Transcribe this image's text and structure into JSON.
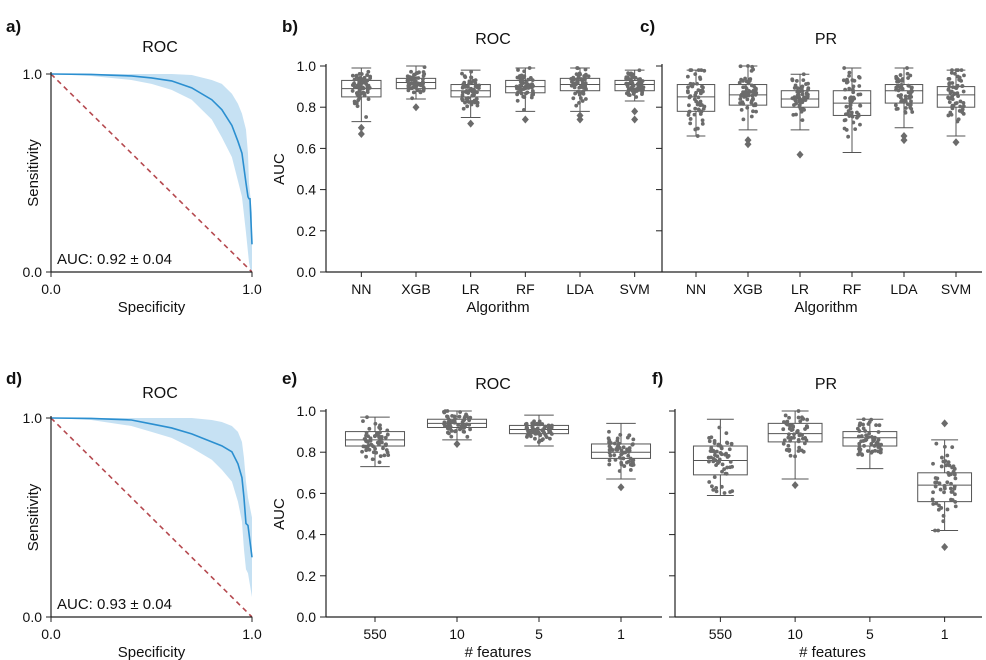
{
  "chart_data": [
    {
      "panel_label": "a)",
      "type": "line",
      "title": "ROC",
      "xlabel": "Specificity",
      "ylabel": "Sensitivity",
      "xlim": [
        0,
        1
      ],
      "ylim": [
        0,
        1
      ],
      "x_ticks": [
        "0.0",
        "1.0"
      ],
      "y_ticks": [
        "0.0",
        "1.0"
      ],
      "annotation": "AUC: 0.92 ± 0.04",
      "colors": {
        "curve": "#2b8fd0",
        "band": "#bcdcf1",
        "chance": "#b5494f"
      },
      "curve": {
        "x": [
          0,
          0.2,
          0.4,
          0.5,
          0.6,
          0.7,
          0.8,
          0.85,
          0.9,
          0.93,
          0.95,
          0.97,
          0.98,
          0.985,
          0.99,
          1.0
        ],
        "y": [
          1,
          0.998,
          0.99,
          0.98,
          0.965,
          0.93,
          0.87,
          0.82,
          0.74,
          0.66,
          0.6,
          0.45,
          0.38,
          0.37,
          0.37,
          0.14
        ]
      },
      "band_upper": [
        1,
        1,
        1,
        1,
        1,
        0.995,
        0.97,
        0.95,
        0.9,
        0.85,
        0.8,
        0.72,
        0.6,
        0.45,
        0.4,
        0.3
      ],
      "band_lower": [
        1,
        0.99,
        0.97,
        0.95,
        0.92,
        0.87,
        0.77,
        0.68,
        0.58,
        0.46,
        0.38,
        0.2,
        0.1,
        0.05,
        0.02,
        0
      ],
      "chance": true
    },
    {
      "panel_label": "b)",
      "type": "box",
      "title": "ROC",
      "xlabel": "Algorithm",
      "ylabel": "AUC",
      "ylim": [
        0,
        1
      ],
      "y_ticks": [
        "0.0",
        "0.2",
        "0.4",
        "0.6",
        "0.8",
        "1.0"
      ],
      "categories": [
        "NN",
        "XGB",
        "LR",
        "RF",
        "LDA",
        "SVM"
      ],
      "boxes": [
        {
          "min": 0.73,
          "q1": 0.85,
          "median": 0.89,
          "q3": 0.93,
          "max": 0.99,
          "outliers": [
            0.67,
            0.7
          ]
        },
        {
          "min": 0.84,
          "q1": 0.89,
          "median": 0.92,
          "q3": 0.94,
          "max": 1.0,
          "outliers": [
            0.8
          ]
        },
        {
          "min": 0.75,
          "q1": 0.85,
          "median": 0.88,
          "q3": 0.91,
          "max": 0.98,
          "outliers": [
            0.72
          ]
        },
        {
          "min": 0.78,
          "q1": 0.87,
          "median": 0.9,
          "q3": 0.93,
          "max": 0.99,
          "outliers": [
            0.74
          ]
        },
        {
          "min": 0.78,
          "q1": 0.88,
          "median": 0.91,
          "q3": 0.94,
          "max": 0.99,
          "outliers": [
            0.74,
            0.76
          ]
        },
        {
          "min": 0.83,
          "q1": 0.88,
          "median": 0.91,
          "q3": 0.93,
          "max": 0.98,
          "outliers": [
            0.74,
            0.78
          ]
        }
      ]
    },
    {
      "panel_label": "c)",
      "type": "box",
      "title": "PR",
      "xlabel": "Algorithm",
      "ylabel": "",
      "ylim": [
        0,
        1
      ],
      "y_ticks": [],
      "categories": [
        "NN",
        "XGB",
        "LR",
        "RF",
        "LDA",
        "SVM"
      ],
      "boxes": [
        {
          "min": 0.66,
          "q1": 0.78,
          "median": 0.85,
          "q3": 0.91,
          "max": 0.98,
          "outliers": []
        },
        {
          "min": 0.69,
          "q1": 0.81,
          "median": 0.86,
          "q3": 0.91,
          "max": 1.0,
          "outliers": [
            0.62,
            0.64
          ]
        },
        {
          "min": 0.69,
          "q1": 0.8,
          "median": 0.84,
          "q3": 0.88,
          "max": 0.96,
          "outliers": [
            0.57
          ]
        },
        {
          "min": 0.58,
          "q1": 0.76,
          "median": 0.82,
          "q3": 0.88,
          "max": 0.99,
          "outliers": []
        },
        {
          "min": 0.7,
          "q1": 0.82,
          "median": 0.88,
          "q3": 0.91,
          "max": 0.99,
          "outliers": [
            0.64,
            0.66
          ]
        },
        {
          "min": 0.66,
          "q1": 0.8,
          "median": 0.86,
          "q3": 0.9,
          "max": 0.98,
          "outliers": [
            0.63
          ]
        }
      ]
    },
    {
      "panel_label": "d)",
      "type": "line",
      "title": "ROC",
      "xlabel": "Specificity",
      "ylabel": "Sensitivity",
      "xlim": [
        0,
        1
      ],
      "ylim": [
        0,
        1
      ],
      "x_ticks": [
        "0.0",
        "1.0"
      ],
      "y_ticks": [
        "0.0",
        "1.0"
      ],
      "annotation": "AUC: 0.93 ± 0.04",
      "colors": {
        "curve": "#2b8fd0",
        "band": "#bcdcf1",
        "chance": "#b5494f"
      },
      "curve": {
        "x": [
          0,
          0.2,
          0.4,
          0.5,
          0.6,
          0.7,
          0.8,
          0.85,
          0.9,
          0.93,
          0.95,
          0.96,
          0.97,
          0.98,
          1.0
        ],
        "y": [
          1,
          0.998,
          0.99,
          0.97,
          0.95,
          0.92,
          0.88,
          0.86,
          0.83,
          0.77,
          0.7,
          0.6,
          0.47,
          0.46,
          0.3
        ]
      },
      "band_upper": [
        1,
        1,
        1,
        1,
        1,
        1,
        0.99,
        0.98,
        0.96,
        0.93,
        0.88,
        0.8,
        0.68,
        0.6,
        0.5
      ],
      "band_lower": [
        1,
        0.99,
        0.96,
        0.93,
        0.9,
        0.85,
        0.79,
        0.74,
        0.68,
        0.58,
        0.48,
        0.34,
        0.24,
        0.22,
        0.1
      ],
      "chance": true
    },
    {
      "panel_label": "e)",
      "type": "box",
      "title": "ROC",
      "xlabel": "# features",
      "ylabel": "AUC",
      "ylim": [
        0,
        1
      ],
      "y_ticks": [
        "0.0",
        "0.2",
        "0.4",
        "0.6",
        "0.8",
        "1.0"
      ],
      "categories": [
        "550",
        "10",
        "5",
        "1"
      ],
      "boxes": [
        {
          "min": 0.73,
          "q1": 0.83,
          "median": 0.86,
          "q3": 0.9,
          "max": 0.97,
          "outliers": []
        },
        {
          "min": 0.86,
          "q1": 0.92,
          "median": 0.94,
          "q3": 0.96,
          "max": 1.0,
          "outliers": [
            0.84
          ]
        },
        {
          "min": 0.83,
          "q1": 0.89,
          "median": 0.91,
          "q3": 0.93,
          "max": 0.98,
          "outliers": []
        },
        {
          "min": 0.67,
          "q1": 0.77,
          "median": 0.8,
          "q3": 0.84,
          "max": 0.94,
          "outliers": [
            0.63
          ]
        }
      ]
    },
    {
      "panel_label": "f)",
      "type": "box",
      "title": "PR",
      "xlabel": "# features",
      "ylabel": "",
      "ylim": [
        0,
        1
      ],
      "y_ticks": [],
      "categories": [
        "550",
        "10",
        "5",
        "1"
      ],
      "boxes": [
        {
          "min": 0.59,
          "q1": 0.69,
          "median": 0.76,
          "q3": 0.83,
          "max": 0.96,
          "outliers": []
        },
        {
          "min": 0.67,
          "q1": 0.85,
          "median": 0.89,
          "q3": 0.94,
          "max": 1.0,
          "outliers": [
            0.64
          ]
        },
        {
          "min": 0.72,
          "q1": 0.83,
          "median": 0.87,
          "q3": 0.9,
          "max": 0.96,
          "outliers": []
        },
        {
          "min": 0.42,
          "q1": 0.56,
          "median": 0.64,
          "q3": 0.7,
          "max": 0.86,
          "outliers": [
            0.34,
            0.94
          ]
        }
      ]
    }
  ]
}
